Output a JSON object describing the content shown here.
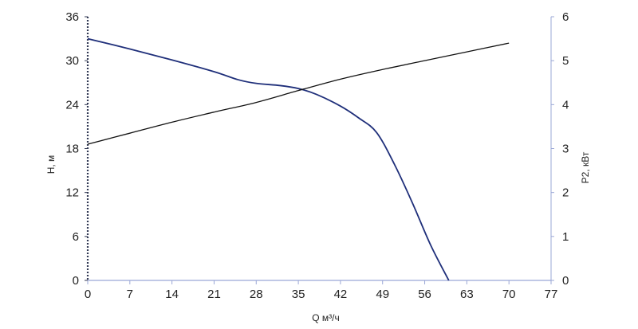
{
  "chart_data": {
    "type": "line",
    "xlabel": "Q м³/ч",
    "ylabel_left": "H, м",
    "ylabel_right": "P2, кВт",
    "x_ticks": [
      0,
      7,
      14,
      21,
      28,
      35,
      42,
      49,
      56,
      63,
      70,
      77
    ],
    "y_left_ticks": [
      0,
      6,
      12,
      18,
      24,
      30,
      36
    ],
    "y_right_ticks": [
      0,
      1,
      2,
      3,
      4,
      5,
      6
    ],
    "xlim": [
      0,
      77
    ],
    "ylim_left": [
      0,
      36
    ],
    "ylim_right": [
      0,
      6
    ],
    "grid": false,
    "colors": {
      "head_curve": "#1f2f7a",
      "power_curve": "#111111",
      "axis": "#9aa7d6"
    },
    "series": [
      {
        "axis": "left",
        "x": [
          0,
          7,
          14,
          21,
          25,
          28,
          32,
          35,
          38,
          42,
          45,
          48,
          51,
          54,
          57,
          60
        ],
        "y": [
          33,
          31.6,
          30.1,
          28.5,
          27.4,
          26.9,
          26.6,
          26.2,
          25.4,
          23.8,
          22.2,
          20.2,
          15.8,
          10.5,
          4.8,
          0
        ]
      },
      {
        "axis": "right",
        "x": [
          0,
          7,
          14,
          21,
          28,
          35,
          42,
          49,
          56,
          63,
          70
        ],
        "y": [
          3.1,
          3.35,
          3.6,
          3.83,
          4.05,
          4.32,
          4.58,
          4.8,
          5.0,
          5.2,
          5.4
        ]
      }
    ]
  }
}
